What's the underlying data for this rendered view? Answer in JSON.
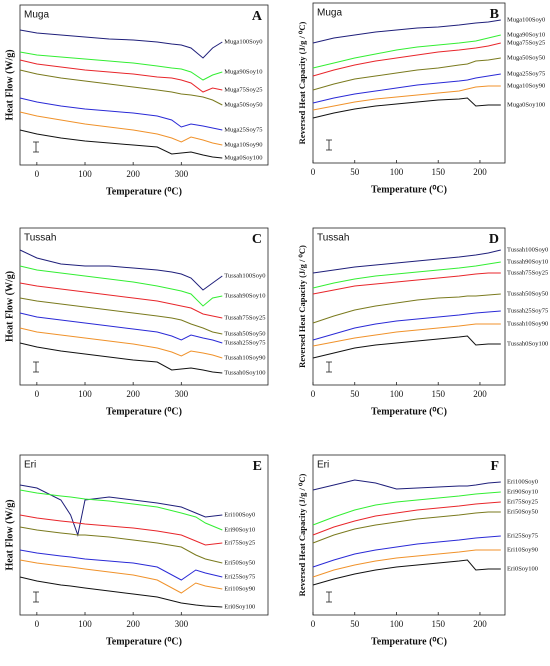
{
  "chart_data": [
    {
      "type": "line",
      "title": "Muga",
      "panel_label": "A",
      "x_label": "Temperature (⁰C)",
      "y_label": "Heat Flow (W/g)",
      "x": [
        -35,
        0,
        50,
        100,
        150,
        200,
        250,
        280,
        300,
        320,
        345,
        365,
        385
      ],
      "xlim": [
        -35,
        480
      ],
      "xticks": [
        0,
        100,
        200,
        300
      ],
      "ylim": [
        0,
        160
      ],
      "series": [
        {
          "name": "Muga100Soy0",
          "color": "#1f1f7a",
          "values": [
            135,
            132,
            130,
            128,
            126,
            125,
            123,
            121,
            120,
            117,
            107,
            117,
            123
          ]
        },
        {
          "name": "Muga90Soy10",
          "color": "#33ee33",
          "values": [
            113,
            110,
            108,
            106,
            104,
            102,
            99,
            97,
            96,
            93,
            85,
            90,
            93
          ]
        },
        {
          "name": "Muga75Soy25",
          "color": "#e8262b",
          "values": [
            105,
            101,
            98,
            95,
            93,
            91,
            88,
            87,
            85,
            82,
            73,
            77,
            75
          ]
        },
        {
          "name": "Muga50Soy50",
          "color": "#7a7a1e",
          "values": [
            95,
            91,
            87,
            84,
            81,
            78,
            75,
            73,
            71,
            70,
            68,
            65,
            60
          ]
        },
        {
          "name": "Muga25Soy75",
          "color": "#2a2ad6",
          "values": [
            67,
            63,
            59,
            56,
            54,
            52,
            49,
            45,
            38,
            41,
            39,
            37,
            35
          ]
        },
        {
          "name": "Muga10Soy90",
          "color": "#f0922b",
          "values": [
            53,
            49,
            45,
            41,
            38,
            35,
            31,
            27,
            23,
            28,
            25,
            22,
            20
          ]
        },
        {
          "name": "Muga0Soy100",
          "color": "#111111",
          "values": [
            35,
            31,
            27,
            24,
            22,
            20,
            18,
            11,
            12,
            13,
            10,
            8,
            7
          ]
        }
      ]
    },
    {
      "type": "line",
      "title": "Muga",
      "panel_label": "B",
      "x_label": "Temperature (⁰C)",
      "y_label": "Reversed Heat Capacity (J/g / ⁰C)",
      "x": [
        0,
        25,
        50,
        75,
        100,
        125,
        150,
        175,
        185,
        195,
        210,
        225
      ],
      "xlim": [
        0,
        230
      ],
      "xticks": [
        0,
        50,
        100,
        150,
        200
      ],
      "ylim": [
        0,
        160
      ],
      "series": [
        {
          "name": "Muga100Soy0",
          "color": "#1f1f7a",
          "values": [
            120,
            125,
            128,
            131,
            133,
            135,
            136,
            138,
            139,
            140,
            141,
            143
          ]
        },
        {
          "name": "Muga90Soy10",
          "color": "#33ee33",
          "values": [
            95,
            100,
            105,
            109,
            113,
            116,
            118,
            120,
            121,
            122,
            125,
            128
          ]
        },
        {
          "name": "Muga75Soy25",
          "color": "#e8262b",
          "values": [
            87,
            93,
            98,
            102,
            105,
            108,
            111,
            113,
            114,
            115,
            117,
            120
          ]
        },
        {
          "name": "Muga50Soy50",
          "color": "#7a7a1e",
          "values": [
            73,
            79,
            84,
            87,
            90,
            93,
            95,
            98,
            99,
            102,
            103,
            105
          ]
        },
        {
          "name": "Muga25Soy75",
          "color": "#2a2ad6",
          "values": [
            60,
            65,
            69,
            72,
            75,
            78,
            80,
            82,
            83,
            85,
            87,
            89
          ]
        },
        {
          "name": "Muga10Soy90",
          "color": "#f0922b",
          "values": [
            53,
            57,
            61,
            64,
            66,
            68,
            70,
            72,
            74,
            76,
            77,
            77
          ]
        },
        {
          "name": "Muga0Soy100",
          "color": "#111111",
          "values": [
            45,
            50,
            54,
            57,
            59,
            61,
            63,
            64,
            65,
            57,
            58,
            58
          ]
        }
      ]
    },
    {
      "type": "line",
      "title": "Tussah",
      "panel_label": "C",
      "x_label": "Temperature (⁰C)",
      "y_label": "Heat Flow (W/g)",
      "x": [
        -35,
        0,
        50,
        100,
        150,
        200,
        250,
        280,
        300,
        320,
        345,
        365,
        385
      ],
      "xlim": [
        -35,
        480
      ],
      "xticks": [
        0,
        100,
        200,
        300
      ],
      "ylim": [
        0,
        157
      ],
      "series": [
        {
          "name": "Tussah100Soy0",
          "color": "#1f1f7a",
          "values": [
            135,
            127,
            121,
            119,
            119,
            117,
            115,
            113,
            111,
            107,
            95,
            102,
            109
          ]
        },
        {
          "name": "Tussah90Soy10",
          "color": "#33ee33",
          "values": [
            119,
            115,
            112,
            109,
            106,
            103,
            99,
            96,
            94,
            91,
            79,
            87,
            89
          ]
        },
        {
          "name": "Tussah75Soy25",
          "color": "#e8262b",
          "values": [
            102,
            99,
            96,
            93,
            90,
            87,
            84,
            81,
            79,
            77,
            71,
            69,
            67
          ]
        },
        {
          "name": "Tussah50Soy50",
          "color": "#7a7a1e",
          "values": [
            87,
            84,
            81,
            78,
            75,
            72,
            69,
            67,
            65,
            61,
            57,
            53,
            51
          ]
        },
        {
          "name": "Tussah25Soy75",
          "color": "#2a2ad6",
          "values": [
            72,
            68,
            65,
            62,
            59,
            56,
            53,
            49,
            45,
            50,
            47,
            45,
            42
          ]
        },
        {
          "name": "Tussah10Soy90",
          "color": "#f0922b",
          "values": [
            57,
            53,
            50,
            47,
            44,
            41,
            37,
            33,
            29,
            34,
            32,
            30,
            27
          ]
        },
        {
          "name": "Tussah0Soy100",
          "color": "#111111",
          "values": [
            42,
            38,
            34,
            31,
            28,
            25,
            23,
            15,
            16,
            17,
            15,
            13,
            12
          ]
        }
      ]
    },
    {
      "type": "line",
      "title": "Tussah",
      "panel_label": "D",
      "x_label": "Temperature (⁰C)",
      "y_label": "Reversed Heat Capacity (J/g / ⁰C)",
      "x": [
        0,
        25,
        50,
        75,
        100,
        125,
        150,
        175,
        185,
        195,
        210,
        225
      ],
      "xlim": [
        0,
        230
      ],
      "xticks": [
        0,
        50,
        100,
        150,
        200
      ],
      "ylim": [
        0,
        157
      ],
      "series": [
        {
          "name": "Tussah100Soy0",
          "color": "#1f1f7a",
          "values": [
            112,
            115,
            118,
            120,
            122,
            124,
            126,
            128,
            129,
            130,
            132,
            135
          ]
        },
        {
          "name": "Tussah90Soy10",
          "color": "#33ee33",
          "values": [
            97,
            102,
            106,
            109,
            111,
            113,
            115,
            117,
            118,
            119,
            121,
            123
          ]
        },
        {
          "name": "Tussah75Soy25",
          "color": "#e8262b",
          "values": [
            91,
            95,
            99,
            101,
            103,
            105,
            107,
            109,
            110,
            111,
            112,
            112
          ]
        },
        {
          "name": "Tussah50Soy50",
          "color": "#7a7a1e",
          "values": [
            62,
            69,
            75,
            79,
            82,
            85,
            87,
            88,
            89,
            89,
            90,
            91
          ]
        },
        {
          "name": "Tussah25Soy75",
          "color": "#2a2ad6",
          "values": [
            45,
            51,
            57,
            61,
            64,
            66,
            68,
            70,
            71,
            72,
            73,
            74
          ]
        },
        {
          "name": "Tussah10Soy90",
          "color": "#f0922b",
          "values": [
            39,
            43,
            47,
            50,
            53,
            55,
            57,
            59,
            60,
            61,
            61,
            61
          ]
        },
        {
          "name": "Tussah0Soy100",
          "color": "#111111",
          "values": [
            27,
            32,
            37,
            40,
            42,
            44,
            46,
            48,
            49,
            40,
            41,
            41
          ]
        }
      ]
    },
    {
      "type": "line",
      "title": "Eri",
      "panel_label": "E",
      "x_label": "Temperature (⁰C)",
      "y_label": "Heat Flow (W/g)",
      "x": [
        -35,
        0,
        50,
        70,
        85,
        100,
        150,
        200,
        250,
        300,
        330,
        350,
        385
      ],
      "xlim": [
        -35,
        480
      ],
      "xticks": [
        0,
        100,
        200,
        300
      ],
      "ylim": [
        0,
        160
      ],
      "series": [
        {
          "name": "Eri100Soy0",
          "color": "#1f1f7a",
          "values": [
            130,
            127,
            115,
            100,
            80,
            115,
            118,
            115,
            112,
            108,
            102,
            98,
            100
          ]
        },
        {
          "name": "Eri90Soy10",
          "color": "#33ee33",
          "values": [
            125,
            122,
            119,
            118,
            117,
            116,
            114,
            111,
            108,
            102,
            98,
            92,
            85
          ]
        },
        {
          "name": "Eri75Soy25",
          "color": "#e8262b",
          "values": [
            100,
            97,
            94,
            93,
            92,
            91,
            89,
            87,
            84,
            80,
            74,
            70,
            72
          ]
        },
        {
          "name": "Eri50Soy50",
          "color": "#7a7a1e",
          "values": [
            88,
            85,
            82,
            81,
            80,
            80,
            78,
            75,
            72,
            68,
            60,
            56,
            52
          ]
        },
        {
          "name": "Eri25Soy75",
          "color": "#2a2ad6",
          "values": [
            65,
            62,
            59,
            58,
            57,
            56,
            54,
            52,
            48,
            35,
            45,
            42,
            38
          ]
        },
        {
          "name": "Eri10Soy90",
          "color": "#f0922b",
          "values": [
            55,
            52,
            49,
            48,
            47,
            46,
            43,
            40,
            35,
            22,
            32,
            29,
            26
          ]
        },
        {
          "name": "Eri0Soy100",
          "color": "#111111",
          "values": [
            38,
            34,
            30,
            29,
            28,
            27,
            24,
            21,
            18,
            12,
            10,
            9,
            8
          ]
        }
      ]
    },
    {
      "type": "line",
      "title": "Eri",
      "panel_label": "F",
      "x_label": "Temperature (⁰C)",
      "y_label": "Reversed Heat Capacity (J/g / ⁰C)",
      "x": [
        0,
        25,
        50,
        75,
        100,
        125,
        150,
        175,
        185,
        195,
        210,
        225
      ],
      "xlim": [
        0,
        230
      ],
      "xticks": [
        0,
        50,
        100,
        150,
        200
      ],
      "ylim": [
        0,
        160
      ],
      "series": [
        {
          "name": "Eri100Soy0",
          "color": "#1f1f7a",
          "values": [
            125,
            130,
            135,
            132,
            126,
            127,
            128,
            129,
            129,
            130,
            132,
            133
          ]
        },
        {
          "name": "Eri90Soy10",
          "color": "#33ee33",
          "values": [
            90,
            98,
            105,
            110,
            113,
            115,
            117,
            119,
            120,
            121,
            122,
            123
          ]
        },
        {
          "name": "Eri75Soy25",
          "color": "#e8262b",
          "values": [
            80,
            88,
            94,
            99,
            102,
            105,
            107,
            109,
            110,
            111,
            112,
            113
          ]
        },
        {
          "name": "Eri50Soy50",
          "color": "#7a7a1e",
          "values": [
            72,
            80,
            86,
            90,
            93,
            96,
            98,
            100,
            101,
            102,
            103,
            103
          ]
        },
        {
          "name": "Eri25Soy75",
          "color": "#2a2ad6",
          "values": [
            48,
            55,
            61,
            65,
            68,
            71,
            73,
            75,
            76,
            77,
            78,
            79
          ]
        },
        {
          "name": "Eri10Soy90",
          "color": "#f0922b",
          "values": [
            38,
            45,
            50,
            54,
            57,
            59,
            61,
            63,
            64,
            65,
            65,
            65
          ]
        },
        {
          "name": "Eri0Soy100",
          "color": "#111111",
          "values": [
            30,
            36,
            41,
            45,
            48,
            50,
            52,
            54,
            55,
            45,
            46,
            46
          ]
        }
      ]
    }
  ]
}
